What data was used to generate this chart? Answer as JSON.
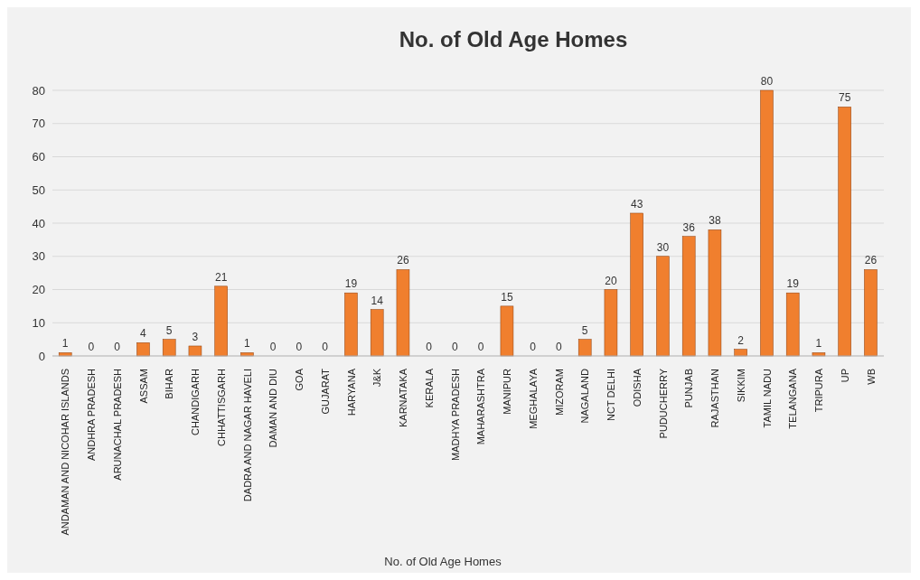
{
  "chart_data": {
    "type": "bar",
    "title": "No. of Old Age Homes",
    "categories": [
      "ANDAMAN AND NICOHAR ISLANDS",
      "ANDHRA PRADESH",
      "ARUNACHAL PRADESH",
      "ASSAM",
      "BIHAR",
      "CHANDIGARH",
      "CHHATTISGARH",
      "DADRA AND NAGAR HAVELI",
      "DAMAN AND DIU",
      "GOA",
      "GUJARAT",
      "HARYANA",
      "J&K",
      "KARNATAKA",
      "KERALA",
      "MADHYA PRADESH",
      "MAHARASHTRA",
      "MANIPUR",
      "MEGHALAYA",
      "MIZORAM",
      "NAGALAND",
      "NCT DELHI",
      "ODISHA",
      "PUDUCHERRY",
      "PUNJAB",
      "RAJASTHAN",
      "SIKKIM",
      "TAMIL NADU",
      "TELANGANA",
      "TRIPURA",
      "UP",
      "WB"
    ],
    "series": [
      {
        "name": "No. of Old Age Homes",
        "color": "#f07f2e",
        "values": [
          1,
          0,
          0,
          4,
          5,
          3,
          21,
          1,
          0,
          0,
          0,
          19,
          14,
          26,
          0,
          0,
          0,
          15,
          0,
          0,
          5,
          20,
          43,
          30,
          36,
          38,
          2,
          80,
          19,
          1,
          75,
          26
        ]
      }
    ],
    "ylim": [
      0,
      80
    ],
    "yticks": [
      0,
      10,
      20,
      30,
      40,
      50,
      60,
      70,
      80
    ],
    "grid": "y",
    "data_labels": true,
    "legend": "bottom"
  }
}
